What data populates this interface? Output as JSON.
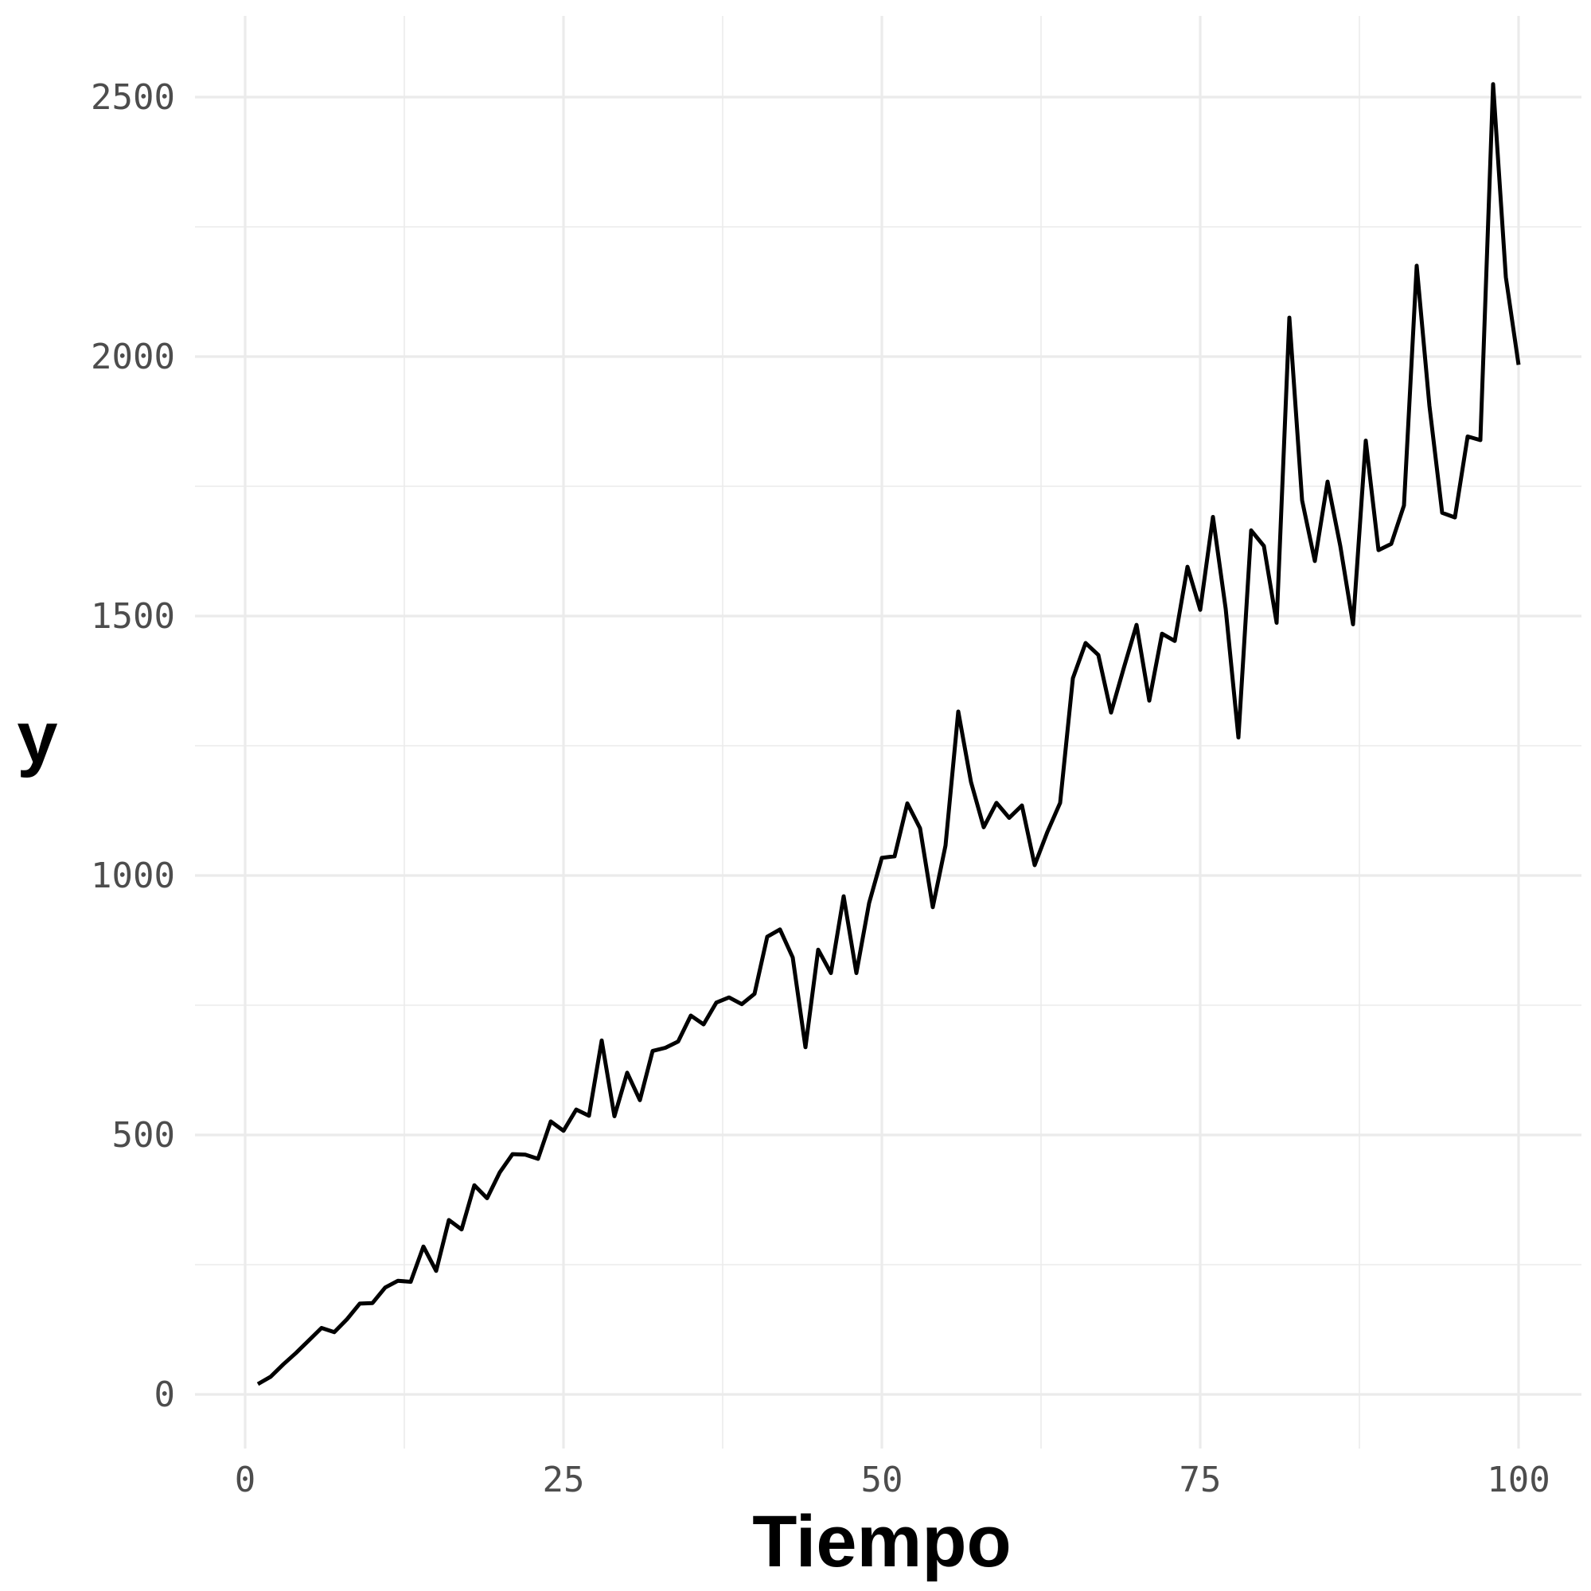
{
  "chart_data": {
    "type": "line",
    "title": "",
    "xlabel": "Tiempo",
    "ylabel": "y",
    "xlim": [
      0,
      100
    ],
    "ylim": [
      0,
      2500
    ],
    "x_ticks": [
      0,
      25,
      50,
      75,
      100
    ],
    "x_tick_labels": [
      "0",
      "25",
      "50",
      "75",
      "100"
    ],
    "y_ticks": [
      0,
      500,
      1000,
      1500,
      2000,
      2500
    ],
    "y_tick_labels": [
      "0",
      "500",
      "1000",
      "1500",
      "2000",
      "2500"
    ],
    "grid": true,
    "legend": "none",
    "line_color": "#000000",
    "series": [
      {
        "x": [
          1,
          2,
          3,
          4,
          5,
          6,
          7,
          8,
          9,
          10,
          11,
          12,
          13,
          14,
          15,
          16,
          17,
          18,
          19,
          20,
          21,
          22,
          23,
          24,
          25,
          26,
          27,
          28,
          29,
          30,
          31,
          32,
          33,
          34,
          35,
          36,
          37,
          38,
          39,
          40,
          41,
          42,
          43,
          44,
          45,
          46,
          47,
          48,
          49,
          50,
          51,
          52,
          53,
          54,
          55,
          56,
          57,
          58,
          59,
          60,
          61,
          62,
          63,
          64,
          65,
          66,
          67,
          68,
          69,
          70,
          71,
          72,
          73,
          74,
          75,
          76,
          77,
          78,
          79,
          80,
          81,
          82,
          83,
          84,
          85,
          86,
          87,
          88,
          89,
          90,
          91,
          92,
          93,
          94,
          95,
          96,
          97,
          98,
          99,
          100
        ],
        "values": [
          20,
          34,
          58,
          80,
          104,
          128,
          120,
          145,
          175,
          176,
          206,
          219,
          217,
          285,
          238,
          336,
          318,
          403,
          378,
          428,
          463,
          462,
          454,
          526,
          508,
          549,
          537,
          682,
          536,
          620,
          567,
          662,
          668,
          680,
          730,
          713,
          755,
          765,
          752,
          772,
          882,
          896,
          842,
          669,
          857,
          812,
          960,
          812,
          947,
          1034,
          1037,
          1139,
          1091,
          939,
          1058,
          1316,
          1180,
          1093,
          1140,
          1111,
          1135,
          1020,
          1084,
          1140,
          1380,
          1448,
          1425,
          1314,
          1400,
          1483,
          1337,
          1466,
          1452,
          1595,
          1512,
          1691,
          1514,
          1266,
          1665,
          1635,
          1487,
          2075,
          1723,
          1606,
          1759,
          1635,
          1484,
          1838,
          1627,
          1639,
          1713,
          2175,
          1905,
          1699,
          1690,
          1846,
          1839,
          2525,
          2153,
          1984
        ]
      }
    ]
  }
}
